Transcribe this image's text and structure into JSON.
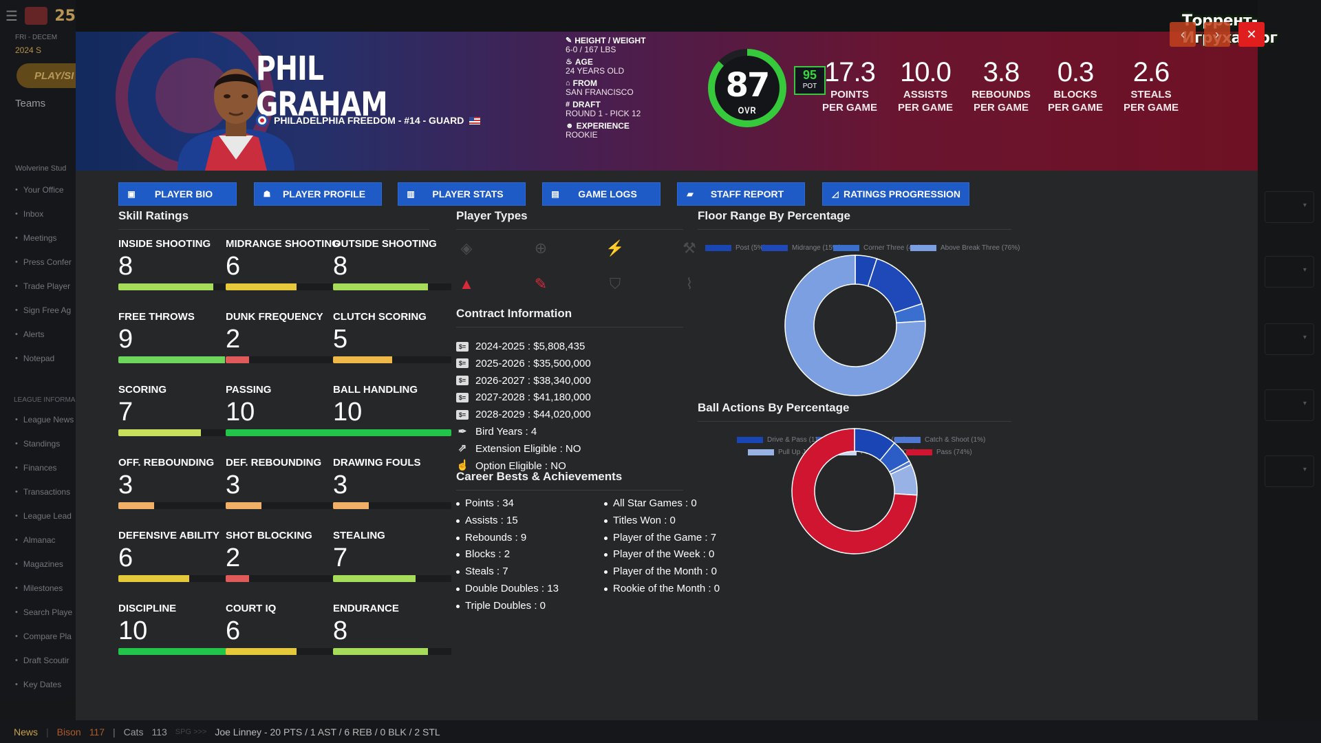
{
  "app": {
    "title": "25",
    "nav_date": "FRI - DECEM",
    "season_short": "2024 S",
    "play_label": "PLAY/SI",
    "teams_label": "Teams",
    "profile_name": "Wolverine Stud"
  },
  "sidebar": {
    "items": [
      "Your Office",
      "Inbox",
      "Meetings",
      "Press Confer",
      "Trade Player",
      "Sign Free Ag",
      "Alerts",
      "Notepad"
    ],
    "section": "LEAGUE INFORMA",
    "league_items": [
      "League News",
      "Standings",
      "Finances",
      "Transactions",
      "League Lead",
      "Almanac",
      "Magazines",
      "Milestones",
      "Search Playe",
      "Compare Pla",
      "Draft Scoutir",
      "Key Dates"
    ]
  },
  "watermark": "Торрент-Игруха.Орг",
  "window": {
    "close_symbol": "✕",
    "prev_symbol": "‹",
    "next_symbol": "›"
  },
  "player": {
    "first_name": "PHIL",
    "last_name": "GRAHAM",
    "team_line": "PHILADELPHIA FREEDOM - #14 - GUARD",
    "bio": [
      {
        "label": "HEIGHT / WEIGHT",
        "value": "6-0 / 167 LBS",
        "icon": "ruler-icon"
      },
      {
        "label": "AGE",
        "value": "24 YEARS OLD",
        "icon": "cake-icon"
      },
      {
        "label": "FROM",
        "value": "SAN FRANCISCO",
        "icon": "building-icon"
      },
      {
        "label": "DRAFT",
        "value": "ROUND 1 - PICK 12",
        "icon": "hash-icon"
      },
      {
        "label": "EXPERIENCE",
        "value": "ROOKIE",
        "icon": "users-icon"
      }
    ],
    "ovr": "87",
    "ovr_label": "OVR",
    "ovr_fraction": 0.87,
    "pot": "95",
    "pot_label": "POT",
    "stats": [
      {
        "value": "17.3",
        "label1": "POINTS",
        "label2": "PER GAME"
      },
      {
        "value": "10.0",
        "label1": "ASSISTS",
        "label2": "PER GAME"
      },
      {
        "value": "3.8",
        "label1": "REBOUNDS",
        "label2": "PER GAME"
      },
      {
        "value": "0.3",
        "label1": "BLOCKS",
        "label2": "PER GAME"
      },
      {
        "value": "2.6",
        "label1": "STEALS",
        "label2": "PER GAME"
      }
    ]
  },
  "tabs": [
    {
      "label": "PLAYER BIO",
      "icon": "id-card-icon"
    },
    {
      "label": "PLAYER PROFILE",
      "icon": "profile-icon"
    },
    {
      "label": "PLAYER STATS",
      "icon": "bar-chart-icon"
    },
    {
      "label": "GAME LOGS",
      "icon": "clipboard-icon"
    },
    {
      "label": "STAFF REPORT",
      "icon": "comment-icon"
    },
    {
      "label": "RATINGS PROGRESSION",
      "icon": "line-chart-icon"
    }
  ],
  "skills_title": "Skill Ratings",
  "skills": [
    {
      "label": "INSIDE SHOOTING",
      "value": "8",
      "fill": 0.8,
      "color": "#a7dc5a"
    },
    {
      "label": "MIDRANGE SHOOTING",
      "value": "6",
      "fill": 0.6,
      "color": "#e6c93a"
    },
    {
      "label": "OUTSIDE SHOOTING",
      "value": "8",
      "fill": 0.8,
      "color": "#a7dc5a"
    },
    {
      "label": "FREE THROWS",
      "value": "9",
      "fill": 0.9,
      "color": "#6fd65c"
    },
    {
      "label": "DUNK FREQUENCY",
      "value": "2",
      "fill": 0.2,
      "color": "#e05a5a"
    },
    {
      "label": "CLUTCH SCORING",
      "value": "5",
      "fill": 0.5,
      "color": "#efb94a"
    },
    {
      "label": "SCORING",
      "value": "7",
      "fill": 0.7,
      "color": "#c7df5c"
    },
    {
      "label": "PASSING",
      "value": "10",
      "fill": 1.0,
      "color": "#22c44a"
    },
    {
      "label": "BALL HANDLING",
      "value": "10",
      "fill": 1.0,
      "color": "#22c44a"
    },
    {
      "label": "OFF. REBOUNDING",
      "value": "3",
      "fill": 0.3,
      "color": "#f1b068"
    },
    {
      "label": "DEF. REBOUNDING",
      "value": "3",
      "fill": 0.3,
      "color": "#f1b068"
    },
    {
      "label": "DRAWING FOULS",
      "value": "3",
      "fill": 0.3,
      "color": "#f1b068"
    },
    {
      "label": "DEFENSIVE ABILITY",
      "value": "6",
      "fill": 0.6,
      "color": "#e6c93a"
    },
    {
      "label": "SHOT BLOCKING",
      "value": "2",
      "fill": 0.2,
      "color": "#e05a5a"
    },
    {
      "label": "STEALING",
      "value": "7",
      "fill": 0.7,
      "color": "#a7dc5a"
    },
    {
      "label": "DISCIPLINE",
      "value": "10",
      "fill": 1.0,
      "color": "#22c44a"
    },
    {
      "label": "COURT IQ",
      "value": "6",
      "fill": 0.6,
      "color": "#e6c93a"
    },
    {
      "label": "ENDURANCE",
      "value": "8",
      "fill": 0.8,
      "color": "#a7dc5a"
    }
  ],
  "player_types_title": "Player Types",
  "player_types": [
    {
      "icon": "paint-icon",
      "active": false
    },
    {
      "icon": "crosshair-icon",
      "active": false
    },
    {
      "icon": "lightning-icon",
      "active": false
    },
    {
      "icon": "hammer-icon",
      "active": false
    },
    {
      "icon": "mountain-icon",
      "active": true
    },
    {
      "icon": "pencil-icon",
      "active": true
    },
    {
      "icon": "shield-icon",
      "active": false
    },
    {
      "icon": "broom-icon",
      "active": false
    }
  ],
  "contract_title": "Contract Information",
  "contract": [
    {
      "label": "2024-2025",
      "value": "$5,808,435",
      "icon": "money-icon"
    },
    {
      "label": "2025-2026",
      "value": "$35,500,000",
      "icon": "money-icon"
    },
    {
      "label": "2026-2027",
      "value": "$38,340,000",
      "icon": "money-icon"
    },
    {
      "label": "2027-2028",
      "value": "$41,180,000",
      "icon": "money-icon"
    },
    {
      "label": "2028-2029",
      "value": "$44,020,000",
      "icon": "money-icon"
    },
    {
      "label": "Bird Years",
      "value": "4",
      "icon": "feather-icon"
    },
    {
      "label": "Extension Eligible",
      "value": "NO",
      "icon": "external-link-icon"
    },
    {
      "label": "Option Eligible",
      "value": "NO",
      "icon": "thumbs-up-icon"
    }
  ],
  "career_title": "Career Bests & Achievements",
  "career_left": [
    {
      "label": "Points",
      "value": "34"
    },
    {
      "label": "Assists",
      "value": "15"
    },
    {
      "label": "Rebounds",
      "value": "9"
    },
    {
      "label": "Blocks",
      "value": "2"
    },
    {
      "label": "Steals",
      "value": "7"
    },
    {
      "label": "Double Doubles",
      "value": "13"
    },
    {
      "label": "Triple Doubles",
      "value": "0"
    }
  ],
  "career_right": [
    {
      "label": "All Star Games",
      "value": "0"
    },
    {
      "label": "Titles Won",
      "value": "0"
    },
    {
      "label": "Player of the Game",
      "value": "7"
    },
    {
      "label": "Player of the Week",
      "value": "0"
    },
    {
      "label": "Player of the Month",
      "value": "0"
    },
    {
      "label": "Rookie of the Month",
      "value": "0"
    }
  ],
  "chart_data": [
    {
      "type": "pie",
      "title": "Floor Range By Percentage",
      "donut": true,
      "categories": [
        "Post (5%)",
        "Midrange (15%)",
        "Corner Three (4%)",
        "Above Break Three (76%)"
      ],
      "values": [
        5,
        15,
        4,
        76
      ],
      "colors": [
        "#1a46b5",
        "#1f49b8",
        "#3a6fd0",
        "#7b9fe0"
      ]
    },
    {
      "type": "pie",
      "title": "Ball Actions By Percentage",
      "donut": true,
      "categories": [
        "Drive & Pass (11%)",
        "Drive & Shoot (6%)",
        "Catch & Shoot (1%)",
        "Pull Up Jumper (8%)",
        "Pull Up Shot (0%)",
        "Pass (74%)"
      ],
      "values": [
        11,
        6,
        1,
        8,
        0,
        74
      ],
      "colors": [
        "#1a46b5",
        "#2c5cc6",
        "#4e78d2",
        "#98b2e6",
        "#c9d6ef",
        "#d01530"
      ]
    }
  ],
  "newsbar": {
    "label": "News",
    "team1": "Bison",
    "score1": "117",
    "team2": "Cats",
    "score2": "113",
    "sep": "SPG >>>",
    "headline": "Joe Linney - 20 PTS / 1 AST / 6 REB / 0 BLK / 2 STL"
  }
}
